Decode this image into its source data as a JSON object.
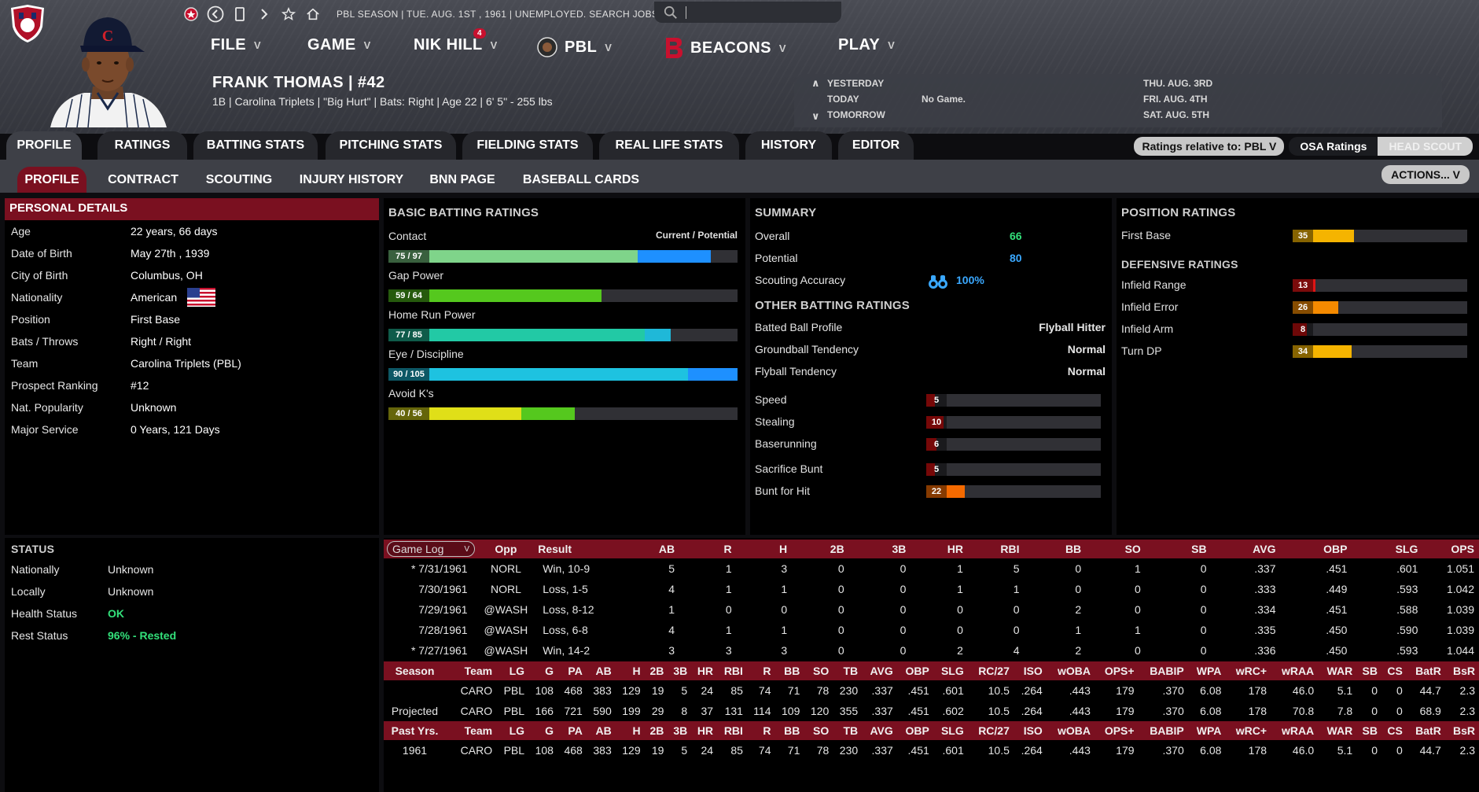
{
  "header": {
    "toolbar_status": "PBL SEASON  |  TUE. AUG. 1ST , 1961  |  UNEMPLOYED. SEARCH JOBS...",
    "search_placeholder": "",
    "menus": [
      "FILE",
      "GAME",
      "NIK HILL",
      "PBL",
      "BEACONS",
      "PLAY"
    ],
    "nik_badge": "4",
    "player_name": "FRANK THOMAS | #42",
    "player_info": "1B | Carolina Triplets  |  \"Big Hurt\" | Bats: Right  |  Age 22  |  6' 5\" - 255 lbs",
    "colors": {
      "accent_red": "#7a1020",
      "brand_red": "#c8102e"
    }
  },
  "schedule": {
    "rows": [
      {
        "label": "YESTERDAY",
        "value": ""
      },
      {
        "label": "TODAY",
        "value": "No Game."
      },
      {
        "label": "TOMORROW",
        "value": ""
      }
    ],
    "upcoming": [
      "THU. AUG. 3RD",
      "FRI. AUG. 4TH",
      "SAT. AUG. 5TH"
    ]
  },
  "tabs_primary": [
    "PROFILE",
    "RATINGS",
    "BATTING STATS",
    "PITCHING STATS",
    "FIELDING STATS",
    "REAL LIFE STATS",
    "HISTORY",
    "EDITOR"
  ],
  "tabs_secondary": [
    "PROFILE",
    "CONTRACT",
    "SCOUTING",
    "INJURY HISTORY",
    "BNN PAGE",
    "BASEBALL CARDS"
  ],
  "ratings_controls": {
    "relative": "Ratings relative to: PBL",
    "osa": "OSA Ratings",
    "scout": "HEAD SCOUT",
    "actions": "ACTIONS..."
  },
  "personal": {
    "title": "PERSONAL DETAILS",
    "rows": [
      {
        "k": "Age",
        "v": "22 years, 66 days"
      },
      {
        "k": "Date of Birth",
        "v": "May 27th , 1939"
      },
      {
        "k": "City of Birth",
        "v": "Columbus, OH"
      },
      {
        "k": "Nationality",
        "v": "American"
      },
      {
        "k": "Position",
        "v": "First Base"
      },
      {
        "k": "Bats / Throws",
        "v": "Right / Right"
      },
      {
        "k": "Team",
        "v": "Carolina Triplets (PBL)"
      },
      {
        "k": "Prospect Ranking",
        "v": "#12"
      },
      {
        "k": "Nat. Popularity",
        "v": "Unknown"
      },
      {
        "k": "Major Service",
        "v": "0 Years, 121 Days"
      }
    ]
  },
  "status": {
    "title": "STATUS",
    "rows": [
      {
        "k": "Nationally",
        "v": "Unknown"
      },
      {
        "k": "Locally",
        "v": "Unknown"
      },
      {
        "k": "Health Status",
        "v": "OK"
      },
      {
        "k": "Rest Status",
        "v": "96% - Rested"
      }
    ]
  },
  "batting": {
    "title": "BASIC BATTING RATINGS",
    "legend": "Current / Potential",
    "bars": [
      {
        "label": "Contact",
        "text": "75 / 97",
        "cur": 75,
        "pot": 97,
        "color": "#7fd48a",
        "pcolor": "#1e90ff"
      },
      {
        "label": "Gap Power",
        "text": "59 / 64",
        "cur": 59,
        "pot": 64,
        "color": "#55c81e",
        "pcolor": "#55c81e"
      },
      {
        "label": "Home Run Power",
        "text": "77 / 85",
        "cur": 77,
        "pot": 85,
        "color": "#22c9a5",
        "pcolor": "#1fb8d8"
      },
      {
        "label": "Eye / Discipline",
        "text": "90 / 105",
        "cur": 90,
        "pot": 105,
        "color": "#1ec2e0",
        "pcolor": "#1e90ff"
      },
      {
        "label": "Avoid K's",
        "text": "40 / 56",
        "cur": 40,
        "pot": 56,
        "color": "#e0df18",
        "pcolor": "#55c81e"
      }
    ]
  },
  "summary": {
    "title": "SUMMARY",
    "overall_label": "Overall",
    "overall": "66",
    "potential_label": "Potential",
    "potential": "80",
    "accuracy_label": "Scouting Accuracy",
    "accuracy": "100%",
    "other_title": "OTHER BATTING RATINGS",
    "other": [
      {
        "k": "Batted Ball Profile",
        "v": "Flyball Hitter"
      },
      {
        "k": "Groundball Tendency",
        "v": "Normal"
      },
      {
        "k": "Flyball Tendency",
        "v": "Normal"
      }
    ],
    "run_bars": [
      {
        "label": "Speed",
        "value": 5
      },
      {
        "label": "Stealing",
        "value": 10
      },
      {
        "label": "Baserunning",
        "value": 6
      },
      {
        "label": "Sacrifice Bunt",
        "value": 5
      },
      {
        "label": "Bunt for Hit",
        "value": 22
      }
    ]
  },
  "position": {
    "title": "POSITION RATINGS",
    "pos_bars": [
      {
        "label": "First Base",
        "value": 35,
        "color": "#f5b400"
      }
    ],
    "def_title": "DEFENSIVE RATINGS",
    "def_bars": [
      {
        "label": "Infield Range",
        "value": 13,
        "color": "#e01515"
      },
      {
        "label": "Infield Error",
        "value": 26,
        "color": "#f58a00"
      },
      {
        "label": "Infield Arm",
        "value": 8,
        "color": "#c81010"
      },
      {
        "label": "Turn DP",
        "value": 34,
        "color": "#f5b400"
      }
    ]
  },
  "gamelog": {
    "select": "Game Log",
    "headers": [
      "Opp",
      "Result",
      "AB",
      "R",
      "H",
      "2B",
      "3B",
      "HR",
      "RBI",
      "BB",
      "SO",
      "SB",
      "AVG",
      "OBP",
      "SLG",
      "OPS"
    ],
    "rows": [
      [
        "* 7/31/1961",
        "NORL",
        "Win, 10-9",
        "5",
        "1",
        "3",
        "0",
        "0",
        "1",
        "5",
        "0",
        "1",
        "0",
        ".337",
        ".451",
        ".601",
        "1.051"
      ],
      [
        "7/30/1961",
        "NORL",
        "Loss, 1-5",
        "4",
        "1",
        "1",
        "0",
        "0",
        "1",
        "1",
        "0",
        "0",
        "0",
        ".333",
        ".449",
        ".593",
        "1.042"
      ],
      [
        "7/29/1961",
        "@WASH",
        "Loss, 8-12",
        "1",
        "0",
        "0",
        "0",
        "0",
        "0",
        "0",
        "2",
        "0",
        "0",
        ".334",
        ".451",
        ".588",
        "1.039"
      ],
      [
        "7/28/1961",
        "@WASH",
        "Loss, 6-8",
        "4",
        "1",
        "1",
        "0",
        "0",
        "0",
        "0",
        "1",
        "1",
        "0",
        ".335",
        ".450",
        ".590",
        "1.039"
      ],
      [
        "* 7/27/1961",
        "@WASH",
        "Win, 14-2",
        "3",
        "3",
        "3",
        "0",
        "0",
        "2",
        "4",
        "2",
        "0",
        "0",
        ".336",
        ".450",
        ".593",
        "1.044"
      ]
    ]
  },
  "season": {
    "headers": [
      "Season",
      "Team",
      "LG",
      "G",
      "PA",
      "AB",
      "H",
      "2B",
      "3B",
      "HR",
      "RBI",
      "R",
      "BB",
      "SO",
      "TB",
      "AVG",
      "OBP",
      "SLG",
      "RC/27",
      "ISO",
      "wOBA",
      "OPS+",
      "BABIP",
      "WPA",
      "wRC+",
      "wRAA",
      "WAR",
      "SB",
      "CS",
      "BatR",
      "BsR"
    ],
    "rows": [
      [
        "",
        "CARO",
        "PBL",
        "108",
        "468",
        "383",
        "129",
        "19",
        "5",
        "24",
        "85",
        "74",
        "71",
        "78",
        "230",
        ".337",
        ".451",
        ".601",
        "10.5",
        ".264",
        ".443",
        "179",
        ".370",
        "6.08",
        "178",
        "46.0",
        "5.1",
        "0",
        "0",
        "44.7",
        "2.3"
      ],
      [
        "Projected",
        "CARO",
        "PBL",
        "166",
        "721",
        "590",
        "199",
        "29",
        "8",
        "37",
        "131",
        "114",
        "109",
        "120",
        "355",
        ".337",
        ".451",
        ".602",
        "10.5",
        ".264",
        ".443",
        "179",
        ".370",
        "6.08",
        "178",
        "70.8",
        "7.8",
        "0",
        "0",
        "68.9",
        "2.3"
      ]
    ],
    "past_headers": [
      "Past Yrs.",
      "Team",
      "LG",
      "G",
      "PA",
      "AB",
      "H",
      "2B",
      "3B",
      "HR",
      "RBI",
      "R",
      "BB",
      "SO",
      "TB",
      "AVG",
      "OBP",
      "SLG",
      "RC/27",
      "ISO",
      "wOBA",
      "OPS+",
      "BABIP",
      "WPA",
      "wRC+",
      "wRAA",
      "WAR",
      "SB",
      "CS",
      "BatR",
      "BsR"
    ],
    "past_rows": [
      [
        "1961",
        "CARO",
        "PBL",
        "108",
        "468",
        "383",
        "129",
        "19",
        "5",
        "24",
        "85",
        "74",
        "71",
        "78",
        "230",
        ".337",
        ".451",
        ".601",
        "10.5",
        ".264",
        ".443",
        "179",
        ".370",
        "6.08",
        "178",
        "46.0",
        "5.1",
        "0",
        "0",
        "44.7",
        "2.3"
      ]
    ]
  }
}
